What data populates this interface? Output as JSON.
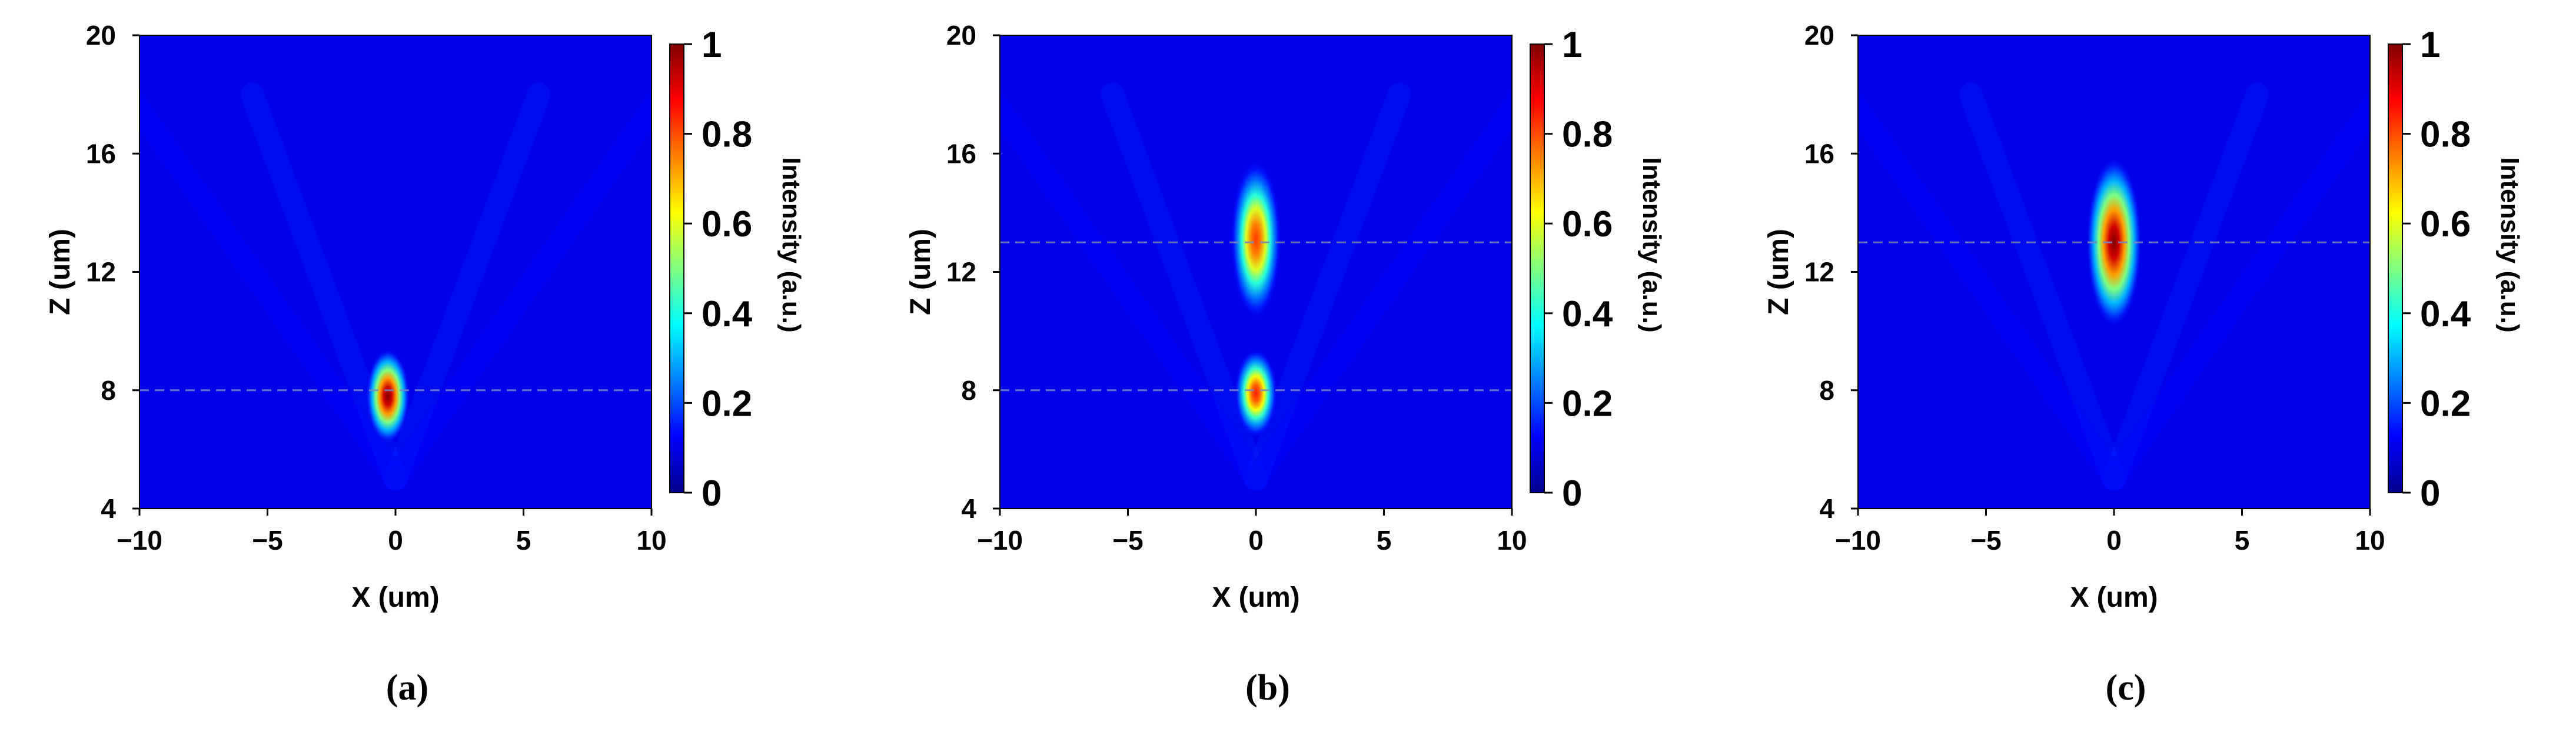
{
  "chart_data": [
    {
      "type": "heatmap",
      "panel_label": "(a)",
      "xlabel": "X (um)",
      "ylabel": "Z (um)",
      "xlim": [
        -10,
        10
      ],
      "ylim": [
        4,
        20
      ],
      "x_ticks": [
        -10,
        -5,
        0,
        5,
        10
      ],
      "y_ticks": [
        4,
        8,
        12,
        16,
        20
      ],
      "colorbar": {
        "label": "Intensity (a.u.)",
        "ticks": [
          0,
          0.2,
          0.4,
          0.6,
          0.8,
          1
        ],
        "range": [
          0,
          1
        ],
        "colormap": "jet"
      },
      "focal_spots": [
        {
          "x": -0.3,
          "z": 7.8,
          "peak_intensity": 1.0,
          "x_width": 0.55,
          "z_width": 1.0
        }
      ],
      "reference_lines_z": [
        8
      ]
    },
    {
      "type": "heatmap",
      "panel_label": "(b)",
      "xlabel": "X (um)",
      "ylabel": "Z (um)",
      "xlim": [
        -10,
        10
      ],
      "ylim": [
        4,
        20
      ],
      "x_ticks": [
        -10,
        -5,
        0,
        5,
        10
      ],
      "y_ticks": [
        4,
        8,
        12,
        16,
        20
      ],
      "colorbar": {
        "label": "Intensity (a.u.)",
        "ticks": [
          0,
          0.2,
          0.4,
          0.6,
          0.8,
          1
        ],
        "range": [
          0,
          1
        ],
        "colormap": "jet"
      },
      "focal_spots": [
        {
          "x": 0,
          "z": 13.1,
          "peak_intensity": 0.82,
          "x_width": 0.65,
          "z_width": 1.7
        },
        {
          "x": 0,
          "z": 7.9,
          "peak_intensity": 0.85,
          "x_width": 0.55,
          "z_width": 0.95
        }
      ],
      "reference_lines_z": [
        13,
        8
      ]
    },
    {
      "type": "heatmap",
      "panel_label": "(c)",
      "xlabel": "X (um)",
      "ylabel": "Z (um)",
      "xlim": [
        -10,
        10
      ],
      "ylim": [
        4,
        20
      ],
      "x_ticks": [
        -10,
        -5,
        0,
        5,
        10
      ],
      "y_ticks": [
        4,
        8,
        12,
        16,
        20
      ],
      "colorbar": {
        "label": "Intensity (a.u.)",
        "ticks": [
          0,
          0.2,
          0.4,
          0.6,
          0.8,
          1
        ],
        "range": [
          0,
          1
        ],
        "colormap": "jet"
      },
      "focal_spots": [
        {
          "x": 0,
          "z": 13.0,
          "peak_intensity": 1.0,
          "x_width": 0.7,
          "z_width": 1.8
        }
      ],
      "reference_lines_z": [
        13
      ]
    }
  ]
}
